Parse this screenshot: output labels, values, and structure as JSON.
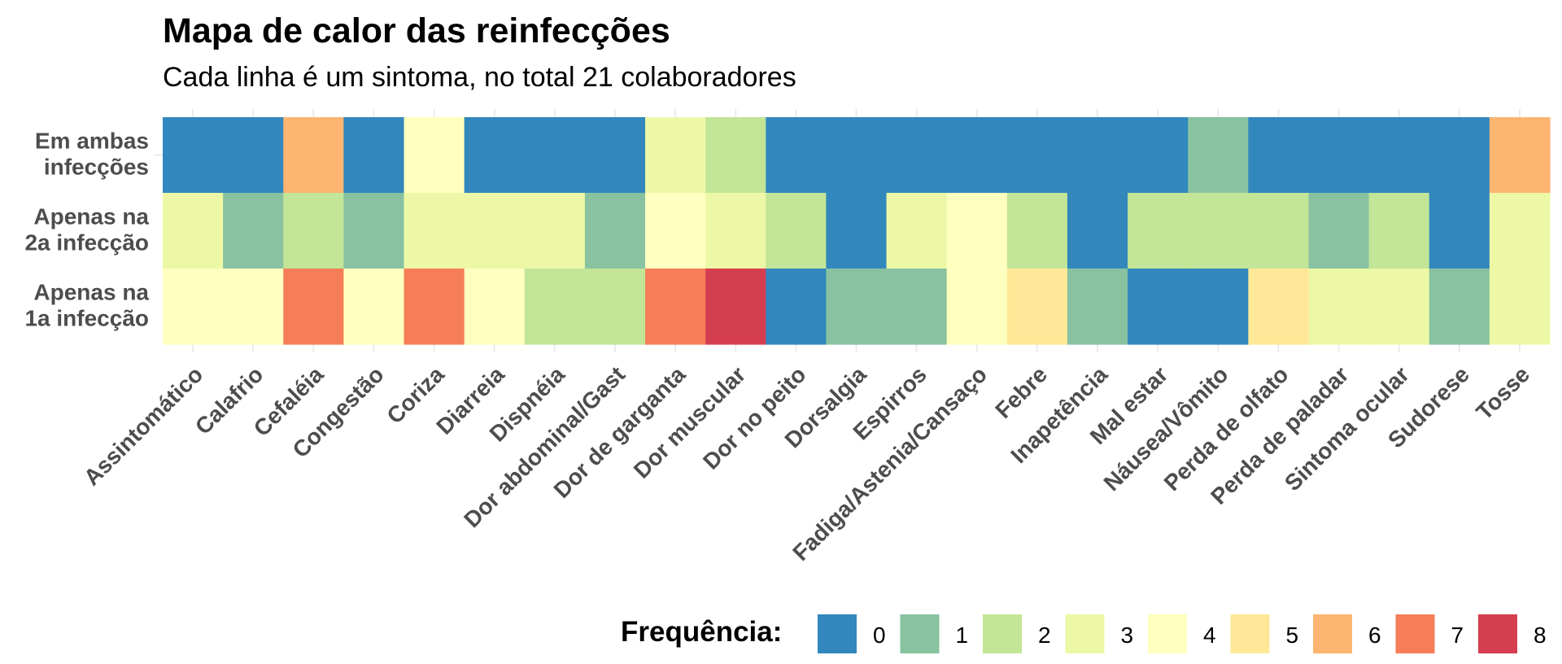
{
  "chart_data": {
    "type": "heatmap",
    "title": "Mapa de calor das reinfecções",
    "subtitle": "Cada linha é um sintoma, no total 21 colaboradores",
    "xlabel": "",
    "ylabel": "",
    "categories": [
      "Assintomático",
      "Calafrio",
      "Cefaléia",
      "Congestão",
      "Coriza",
      "Diarreia",
      "Dispnéia",
      "Dor abdominal/Gast",
      "Dor de garganta",
      "Dor muscular",
      "Dor no peito",
      "Dorsalgia",
      "Espirros",
      "Fadiga/Astenia/Cansaço",
      "Febre",
      "Inapetência",
      "Mal estar",
      "Náusea/Vômito",
      "Perda de olfato",
      "Perda de paladar",
      "Sintoma ocular",
      "Sudorese",
      "Tosse"
    ],
    "rows": [
      {
        "label": [
          "Em ambas",
          "infecções"
        ],
        "values": [
          0,
          0,
          6,
          0,
          4,
          0,
          0,
          0,
          3,
          2,
          0,
          0,
          0,
          0,
          0,
          0,
          0,
          1,
          0,
          0,
          0,
          0,
          6
        ]
      },
      {
        "label": [
          "Apenas na",
          "2a infecção"
        ],
        "values": [
          3,
          1,
          2,
          1,
          3,
          3,
          3,
          1,
          4,
          3,
          2,
          0,
          3,
          4,
          2,
          0,
          2,
          2,
          2,
          1,
          2,
          0,
          3
        ]
      },
      {
        "label": [
          "Apenas na",
          "1a infecção"
        ],
        "values": [
          4,
          4,
          7,
          4,
          7,
          4,
          2,
          2,
          7,
          8,
          0,
          1,
          1,
          4,
          5,
          1,
          0,
          0,
          5,
          3,
          3,
          1,
          3
        ]
      }
    ],
    "legend": {
      "title": "Frequência:",
      "position": "bottom-right",
      "levels": [
        {
          "value": 0,
          "label": "0",
          "color": "#3288BD"
        },
        {
          "value": 1,
          "label": "1",
          "color": "#88C2A0"
        },
        {
          "value": 2,
          "label": "2",
          "color": "#C2E597"
        },
        {
          "value": 3,
          "label": "3",
          "color": "#EDF8A6"
        },
        {
          "value": 4,
          "label": "4",
          "color": "#FFFFBF"
        },
        {
          "value": 5,
          "label": "5",
          "color": "#FEE897"
        },
        {
          "value": 6,
          "label": "6",
          "color": "#FDB571"
        },
        {
          "value": 7,
          "label": "7",
          "color": "#F57E59"
        },
        {
          "value": 8,
          "label": "8",
          "color": "#D53E4F"
        }
      ]
    },
    "grid": true
  }
}
